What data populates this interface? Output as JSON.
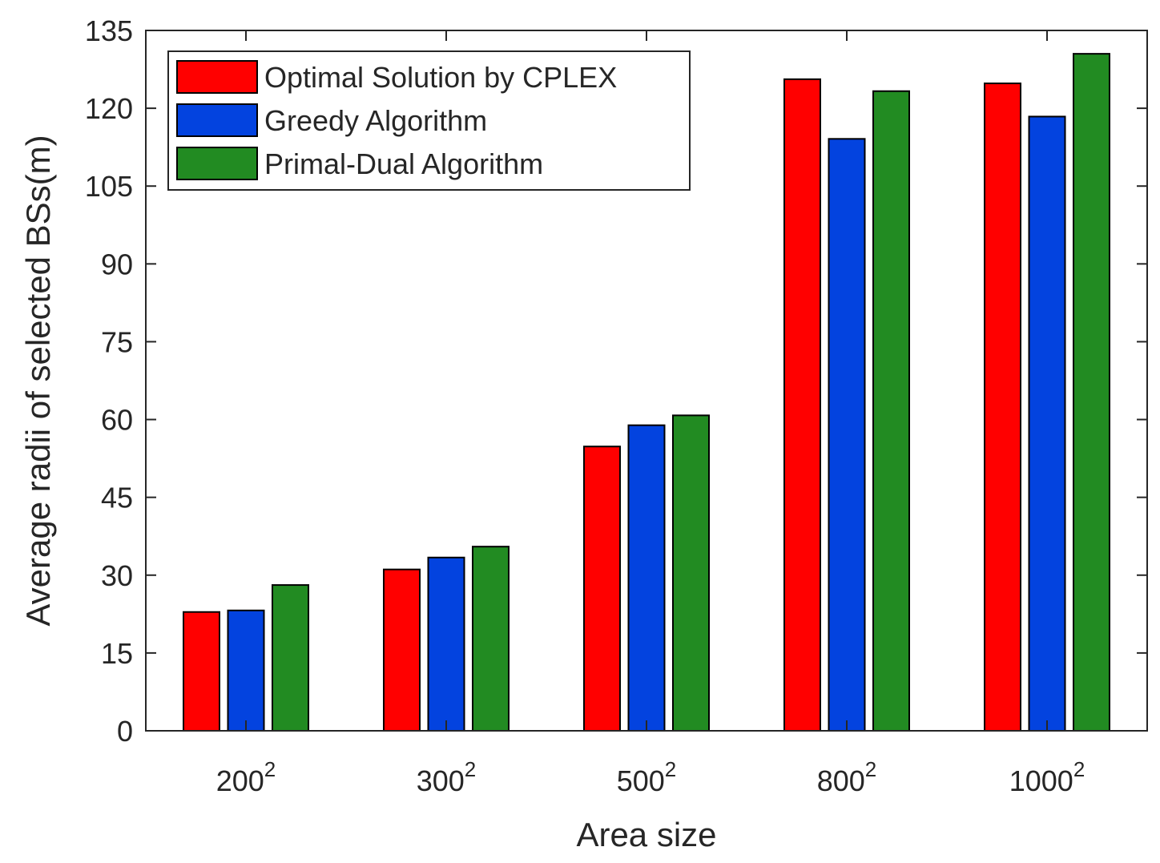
{
  "chart_data": {
    "type": "bar",
    "title": "",
    "xlabel": "Area size",
    "ylabel": "Average radii of selected BSs(m)",
    "categories": [
      {
        "base": "200",
        "exp": "2"
      },
      {
        "base": "300",
        "exp": "2"
      },
      {
        "base": "500",
        "exp": "2"
      },
      {
        "base": "800",
        "exp": "2"
      },
      {
        "base": "1000",
        "exp": "2"
      }
    ],
    "series": [
      {
        "name": "Optimal Solution by CPLEX",
        "color": "#ff0000",
        "values": [
          22.9,
          31.1,
          54.8,
          125.6,
          124.8
        ]
      },
      {
        "name": "Greedy Algorithm",
        "color": "#0343df",
        "values": [
          23.2,
          33.4,
          58.9,
          114.1,
          118.4
        ]
      },
      {
        "name": "Primal-Dual Algorithm",
        "color": "#228b22",
        "values": [
          28.1,
          35.5,
          60.8,
          123.3,
          130.5
        ]
      }
    ],
    "ylim": [
      0,
      135
    ],
    "yticks": [
      0,
      15,
      30,
      45,
      60,
      75,
      90,
      105,
      120,
      135
    ],
    "grid": false,
    "legend_position": "top-left"
  }
}
